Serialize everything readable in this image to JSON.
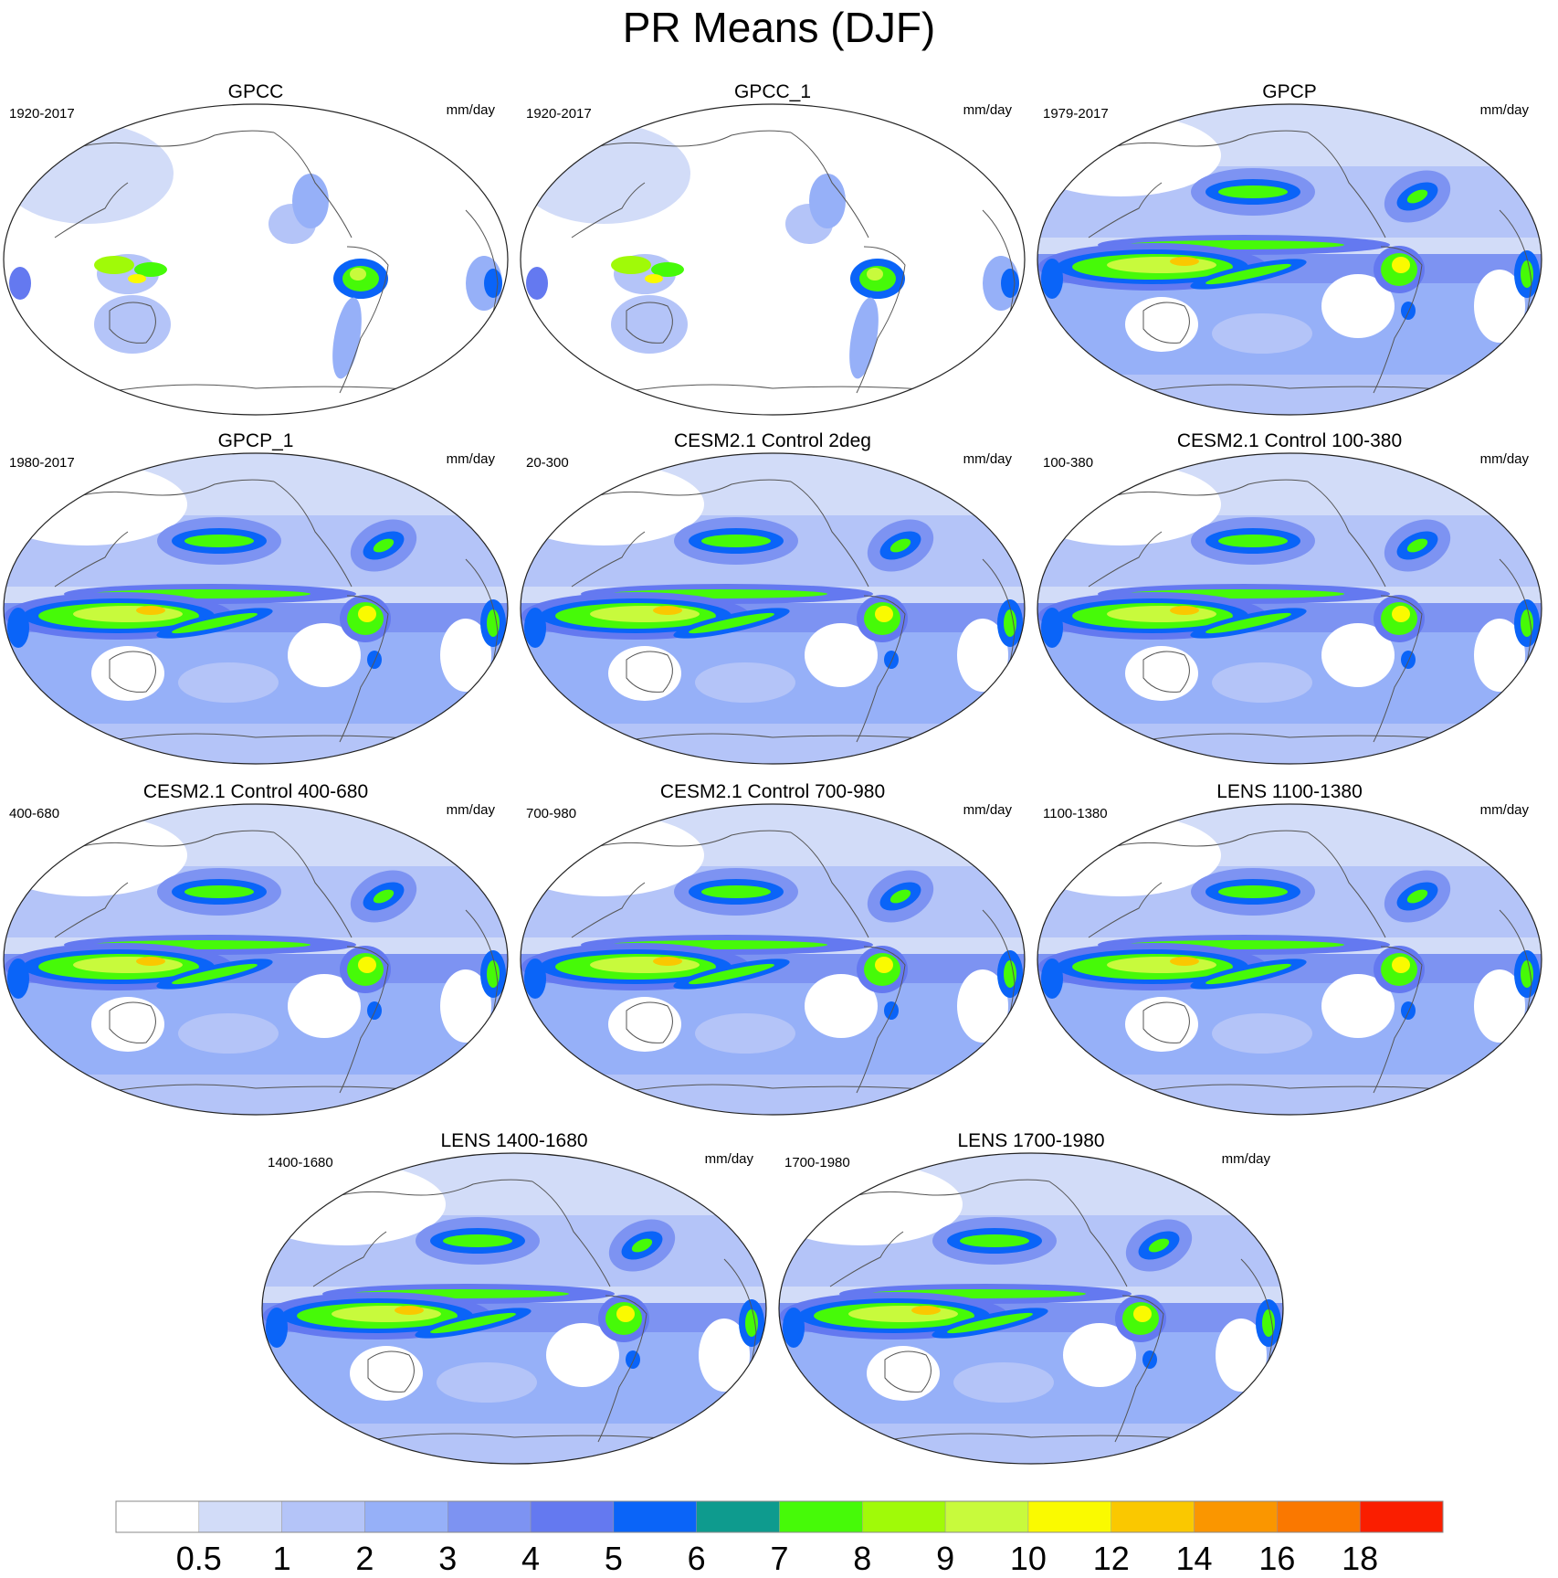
{
  "title": "PR Means (DJF)",
  "units": "mm/day",
  "chart_data": {
    "type": "heatmap",
    "title": "PR Means (DJF)",
    "projection": "Robinson (Pacific-centered)",
    "panels": [
      {
        "title": "GPCC",
        "period": "1920-2017",
        "units": "mm/day",
        "coverage": "land-only"
      },
      {
        "title": "GPCC_1",
        "period": "1920-2017",
        "units": "mm/day",
        "coverage": "land-only"
      },
      {
        "title": "GPCP",
        "period": "1979-2017",
        "units": "mm/day",
        "coverage": "global"
      },
      {
        "title": "GPCP_1",
        "period": "1980-2017",
        "units": "mm/day",
        "coverage": "global"
      },
      {
        "title": "CESM2.1 Control 2deg",
        "period": "20-300",
        "units": "mm/day",
        "coverage": "global"
      },
      {
        "title": "CESM2.1 Control 100-380",
        "period": "100-380",
        "units": "mm/day",
        "coverage": "global"
      },
      {
        "title": "CESM2.1 Control 400-680",
        "period": "400-680",
        "units": "mm/day",
        "coverage": "global"
      },
      {
        "title": "CESM2.1 Control 700-980",
        "period": "700-980",
        "units": "mm/day",
        "coverage": "global"
      },
      {
        "title": "LENS 1100-1380",
        "period": "1100-1380",
        "units": "mm/day",
        "coverage": "global"
      },
      {
        "title": "LENS 1400-1680",
        "period": "1400-1680",
        "units": "mm/day",
        "coverage": "global"
      },
      {
        "title": "LENS 1700-1980",
        "period": "1700-1980",
        "units": "mm/day",
        "coverage": "global"
      }
    ],
    "colorbar": {
      "levels": [
        "0.5",
        "1",
        "2",
        "3",
        "4",
        "5",
        "6",
        "7",
        "8",
        "9",
        "10",
        "12",
        "14",
        "16",
        "18"
      ],
      "colors": [
        "#ffffff",
        "#d2dcf8",
        "#b4c4f8",
        "#96b0f8",
        "#7d93f2",
        "#6479f0",
        "#0a64f8",
        "#0e9b8e",
        "#46fa08",
        "#a0fa08",
        "#c8fa3c",
        "#fafa00",
        "#fac800",
        "#fa9600",
        "#fa7800",
        "#fa1e00"
      ]
    }
  }
}
